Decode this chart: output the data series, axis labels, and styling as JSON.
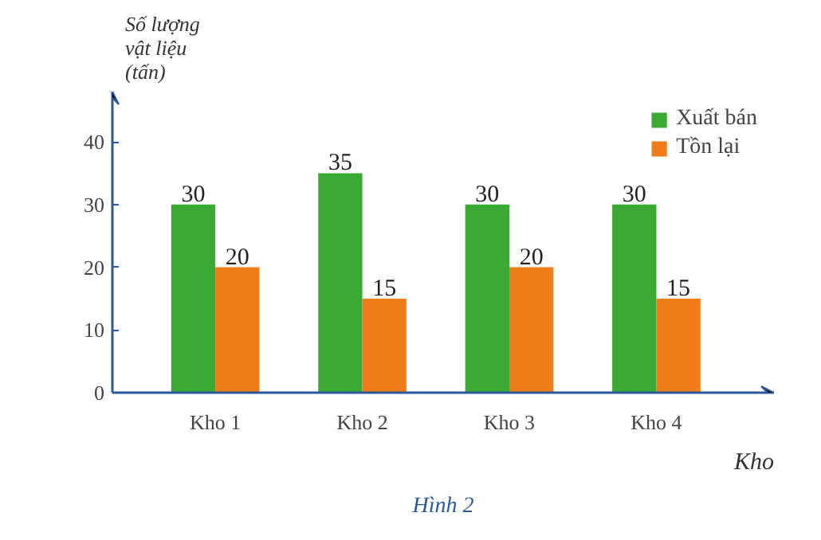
{
  "chart_data": {
    "type": "bar",
    "ylabel": "Số lượng\nvật liệu\n(tấn)",
    "xlabel": "Kho",
    "categories": [
      "Kho 1",
      "Kho 2",
      "Kho 3",
      "Kho 4"
    ],
    "series": [
      {
        "name": "Xuất bán",
        "color": "#3aaa35",
        "values": [
          30,
          35,
          30,
          30
        ]
      },
      {
        "name": "Tồn lại",
        "color": "#f07d1a",
        "values": [
          20,
          15,
          20,
          15
        ]
      }
    ],
    "ylim": [
      0,
      48
    ],
    "yticks": [
      0,
      10,
      20,
      30,
      40
    ],
    "data_labels": true,
    "legend": "top right",
    "grid": false,
    "annotations": [
      "Hình 2"
    ]
  }
}
